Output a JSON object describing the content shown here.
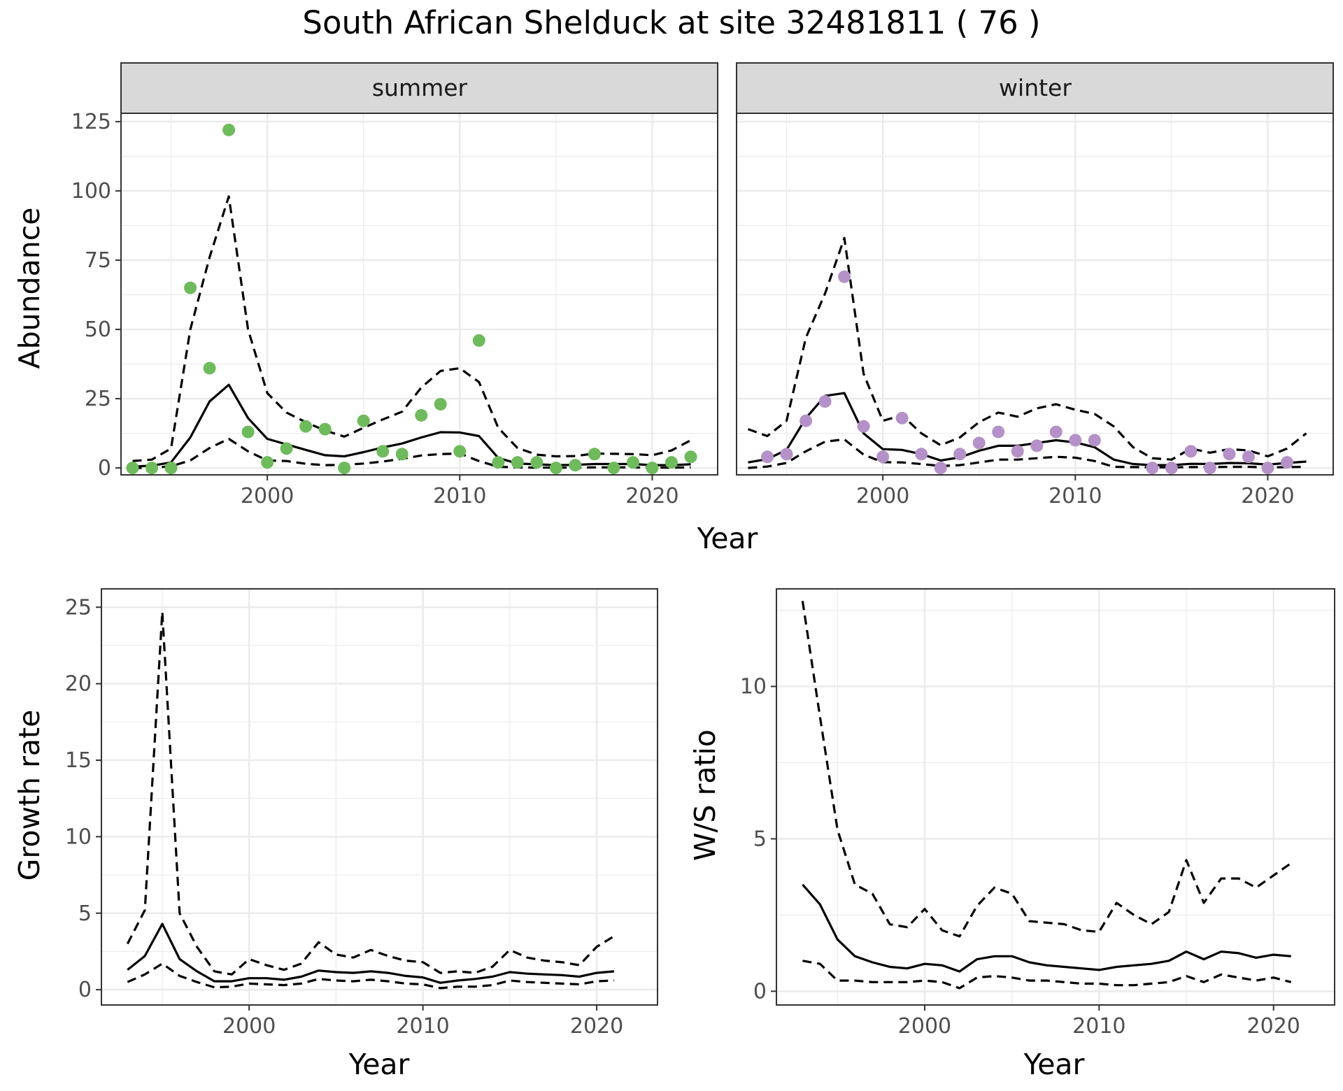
{
  "figure": {
    "title": "South African Shelduck at site 32481811 ( 76 )",
    "colors": {
      "summer_points": "#6dbb5a",
      "winter_points": "#b491c8",
      "line": "#000000",
      "grid": "#ebebeb",
      "strip_bg": "#d9d9d9"
    }
  },
  "chart_data": [
    {
      "id": "summer",
      "type": "scatter+line",
      "panel_label": "summer",
      "xlabel": "Year",
      "ylabel": "Abundance",
      "xlim": [
        1992.4,
        2023.4
      ],
      "ylim": [
        -2.5,
        128
      ],
      "xticks": [
        2000,
        2010,
        2020
      ],
      "yticks": [
        0,
        25,
        50,
        75,
        100,
        125
      ],
      "points": {
        "x": [
          1993,
          1994,
          1995,
          1996,
          1997,
          1998,
          1999,
          2000,
          2001,
          2002,
          2003,
          2004,
          2005,
          2006,
          2007,
          2008,
          2009,
          2010,
          2011,
          2012,
          2013,
          2014,
          2015,
          2016,
          2017,
          2018,
          2019,
          2020,
          2021,
          2022
        ],
        "y": [
          0,
          0,
          0,
          65,
          36,
          122,
          13,
          2,
          7,
          15,
          14,
          0,
          17,
          6,
          5,
          19,
          23,
          6,
          46,
          2,
          2,
          2,
          0,
          1,
          5,
          0,
          2,
          0,
          2,
          4
        ]
      },
      "series": [
        {
          "name": "estimate",
          "style": "solid",
          "x": [
            1993,
            1994,
            1995,
            1996,
            1997,
            1998,
            1999,
            2000,
            2001,
            2002,
            2003,
            2004,
            2005,
            2006,
            2007,
            2008,
            2009,
            2010,
            2011,
            2012,
            2013,
            2014,
            2015,
            2016,
            2017,
            2018,
            2019,
            2020,
            2021,
            2022
          ],
          "y": [
            0.5,
            0.8,
            2,
            11,
            24,
            30,
            18,
            10.5,
            8.5,
            6.5,
            4.6,
            4.2,
            5.7,
            7.4,
            8.8,
            11,
            12.9,
            12.8,
            11.5,
            3.6,
            1.6,
            1.3,
            1,
            1.1,
            1.4,
            1.4,
            1.4,
            1,
            1,
            1.3
          ]
        },
        {
          "name": "upper",
          "style": "dashed",
          "x": [
            1993,
            1994,
            1995,
            1996,
            1997,
            1998,
            1999,
            2000,
            2001,
            2002,
            2003,
            2004,
            2005,
            2006,
            2007,
            2008,
            2009,
            2010,
            2011,
            2012,
            2013,
            2014,
            2015,
            2016,
            2017,
            2018,
            2019,
            2020,
            2021,
            2022
          ],
          "y": [
            2.5,
            3,
            7,
            50,
            76,
            98,
            50,
            27,
            20,
            16.5,
            13.5,
            11.3,
            14.5,
            17.5,
            20.3,
            29,
            35,
            36,
            31,
            14.5,
            7.2,
            4.8,
            4.2,
            4.3,
            5.2,
            5.1,
            5,
            4.6,
            6.3,
            10
          ]
        },
        {
          "name": "lower",
          "style": "dashed",
          "x": [
            1993,
            1994,
            1995,
            1996,
            1997,
            1998,
            1999,
            2000,
            2001,
            2002,
            2003,
            2004,
            2005,
            2006,
            2007,
            2008,
            2009,
            2010,
            2011,
            2012,
            2013,
            2014,
            2015,
            2016,
            2017,
            2018,
            2019,
            2020,
            2021,
            2022
          ],
          "y": [
            0,
            0,
            0.6,
            2.7,
            7.2,
            10.5,
            6,
            2.7,
            2.5,
            1.5,
            1,
            1.1,
            1.6,
            2.3,
            3.3,
            4.5,
            5,
            5.2,
            2.5,
            0.4,
            0.2,
            0.1,
            0.1,
            0.1,
            0.2,
            0.2,
            0.2,
            0.1,
            0.1,
            0.2
          ]
        }
      ]
    },
    {
      "id": "winter",
      "type": "scatter+line",
      "panel_label": "winter",
      "xlabel": "Year",
      "ylabel": "",
      "xlim": [
        1992.4,
        2023.4
      ],
      "ylim": [
        -2.5,
        128
      ],
      "xticks": [
        2000,
        2010,
        2020
      ],
      "yticks": [
        0,
        25,
        50,
        75,
        100,
        125
      ],
      "points": {
        "x": [
          1994,
          1995,
          1996,
          1997,
          1998,
          1999,
          2000,
          2001,
          2002,
          2003,
          2004,
          2005,
          2006,
          2007,
          2008,
          2009,
          2010,
          2011,
          2014,
          2015,
          2016,
          2017,
          2018,
          2019,
          2020,
          2021
        ],
        "y": [
          4,
          5,
          17,
          24,
          69,
          15,
          4,
          18,
          5,
          0,
          5,
          9,
          13,
          6,
          8,
          13,
          10,
          10,
          0,
          0,
          6,
          0,
          5,
          4,
          0,
          2
        ]
      },
      "series": [
        {
          "name": "estimate",
          "style": "solid",
          "x": [
            1993,
            1994,
            1995,
            1996,
            1997,
            1998,
            1999,
            2000,
            2001,
            2002,
            2003,
            2004,
            2005,
            2006,
            2007,
            2008,
            2009,
            2010,
            2011,
            2012,
            2013,
            2014,
            2015,
            2016,
            2017,
            2018,
            2019,
            2020,
            2021,
            2022
          ],
          "y": [
            2,
            3.2,
            6.5,
            18,
            26,
            27,
            12.5,
            6.8,
            6.5,
            5,
            2.7,
            3.8,
            6.2,
            8,
            8,
            9,
            10,
            9.2,
            7.5,
            3,
            1.4,
            1,
            1,
            1.5,
            1.4,
            1.8,
            1.7,
            1.2,
            1.8,
            2.3
          ]
        },
        {
          "name": "upper",
          "style": "dashed",
          "x": [
            1993,
            1994,
            1995,
            1996,
            1997,
            1998,
            1999,
            2000,
            2001,
            2002,
            2003,
            2004,
            2005,
            2006,
            2007,
            2008,
            2009,
            2010,
            2011,
            2012,
            2013,
            2014,
            2015,
            2016,
            2017,
            2018,
            2019,
            2020,
            2021,
            2022
          ],
          "y": [
            14,
            11.5,
            17,
            47,
            63,
            83,
            34,
            17,
            19,
            12.5,
            8.2,
            11,
            16.5,
            20,
            18.5,
            21.5,
            23,
            21,
            19.5,
            15,
            7.5,
            3.5,
            3,
            7,
            5.5,
            6.8,
            6.3,
            4.2,
            7,
            12.5
          ]
        },
        {
          "name": "lower",
          "style": "dashed",
          "x": [
            1993,
            1994,
            1995,
            1996,
            1997,
            1998,
            1999,
            2000,
            2001,
            2002,
            2003,
            2004,
            2005,
            2006,
            2007,
            2008,
            2009,
            2010,
            2011,
            2012,
            2013,
            2014,
            2015,
            2016,
            2017,
            2018,
            2019,
            2020,
            2021,
            2022
          ],
          "y": [
            0,
            0.5,
            1.8,
            6,
            9.5,
            10.3,
            4.8,
            2.1,
            2,
            1.4,
            0.7,
            1,
            2,
            3,
            3,
            3.5,
            4,
            3.7,
            2.5,
            0.4,
            0.3,
            0.2,
            0.2,
            0.3,
            0.3,
            0.4,
            0.4,
            0.2,
            0.3,
            0.4
          ]
        }
      ]
    },
    {
      "id": "growth",
      "type": "line",
      "panel_label": "",
      "xlabel": "Year",
      "ylabel": "Growth rate",
      "xlim": [
        1991.5,
        2023.5
      ],
      "ylim": [
        -1.0,
        26.2
      ],
      "xticks": [
        2000,
        2010,
        2020
      ],
      "yticks": [
        0,
        5,
        10,
        15,
        20,
        25
      ],
      "series": [
        {
          "name": "estimate",
          "style": "solid",
          "x": [
            1993,
            1994,
            1995,
            1996,
            1997,
            1998,
            1999,
            2000,
            2001,
            2002,
            2003,
            2004,
            2005,
            2006,
            2007,
            2008,
            2009,
            2010,
            2011,
            2012,
            2013,
            2014,
            2015,
            2016,
            2017,
            2018,
            2019,
            2020,
            2021
          ],
          "y": [
            1.3,
            2.2,
            4.3,
            2,
            1.2,
            0.55,
            0.55,
            0.75,
            0.75,
            0.65,
            0.85,
            1.25,
            1.15,
            1.1,
            1.2,
            1.1,
            0.9,
            0.8,
            0.45,
            0.6,
            0.7,
            0.85,
            1.15,
            1.05,
            1,
            0.95,
            0.85,
            1.1,
            1.2
          ]
        },
        {
          "name": "upper",
          "style": "dashed",
          "x": [
            1993,
            1994,
            1995,
            1996,
            1997,
            1998,
            1999,
            2000,
            2001,
            2002,
            2003,
            2004,
            2005,
            2006,
            2007,
            2008,
            2009,
            2010,
            2011,
            2012,
            2013,
            2014,
            2015,
            2016,
            2017,
            2018,
            2019,
            2020,
            2021
          ],
          "y": [
            3,
            5.2,
            24.7,
            5,
            2.8,
            1.2,
            1,
            2,
            1.6,
            1.3,
            1.7,
            3.1,
            2.3,
            2.1,
            2.6,
            2.2,
            1.9,
            1.8,
            1.1,
            1.2,
            1.1,
            1.5,
            2.6,
            2.1,
            1.9,
            1.8,
            1.6,
            2.8,
            3.5
          ]
        },
        {
          "name": "lower",
          "style": "dashed",
          "x": [
            1993,
            1994,
            1995,
            1996,
            1997,
            1998,
            1999,
            2000,
            2001,
            2002,
            2003,
            2004,
            2005,
            2006,
            2007,
            2008,
            2009,
            2010,
            2011,
            2012,
            2013,
            2014,
            2015,
            2016,
            2017,
            2018,
            2019,
            2020,
            2021
          ],
          "y": [
            0.5,
            1,
            1.7,
            0.9,
            0.5,
            0.15,
            0.2,
            0.4,
            0.35,
            0.3,
            0.4,
            0.7,
            0.6,
            0.55,
            0.65,
            0.55,
            0.4,
            0.35,
            0.1,
            0.2,
            0.2,
            0.3,
            0.6,
            0.5,
            0.45,
            0.4,
            0.35,
            0.55,
            0.6
          ]
        }
      ]
    },
    {
      "id": "ratio",
      "type": "line",
      "panel_label": "",
      "xlabel": "Year",
      "ylabel": "W/S ratio",
      "xlim": [
        1991.5,
        2023.5
      ],
      "ylim": [
        -0.45,
        13.2
      ],
      "xticks": [
        2000,
        2010,
        2020
      ],
      "yticks": [
        0,
        5,
        10
      ],
      "series": [
        {
          "name": "estimate",
          "style": "solid",
          "x": [
            1993,
            1994,
            1995,
            1996,
            1997,
            1998,
            1999,
            2000,
            2001,
            2002,
            2003,
            2004,
            2005,
            2006,
            2007,
            2008,
            2009,
            2010,
            2011,
            2012,
            2013,
            2014,
            2015,
            2016,
            2017,
            2018,
            2019,
            2020,
            2021
          ],
          "y": [
            3.5,
            2.85,
            1.7,
            1.15,
            0.95,
            0.8,
            0.75,
            0.9,
            0.85,
            0.65,
            1.05,
            1.15,
            1.15,
            0.95,
            0.85,
            0.8,
            0.75,
            0.7,
            0.8,
            0.85,
            0.9,
            1,
            1.3,
            1.05,
            1.3,
            1.25,
            1.1,
            1.2,
            1.15
          ]
        },
        {
          "name": "upper",
          "style": "dashed",
          "x": [
            1993,
            1994,
            1995,
            1996,
            1997,
            1998,
            1999,
            2000,
            2001,
            2002,
            2003,
            2004,
            2005,
            2006,
            2007,
            2008,
            2009,
            2010,
            2011,
            2012,
            2013,
            2014,
            2015,
            2016,
            2017,
            2018,
            2019,
            2020,
            2021
          ],
          "y": [
            12.8,
            9,
            5.3,
            3.5,
            3.2,
            2.2,
            2.1,
            2.7,
            2,
            1.8,
            2.8,
            3.4,
            3.2,
            2.3,
            2.25,
            2.2,
            2,
            1.95,
            2.9,
            2.5,
            2.2,
            2.6,
            4.3,
            2.9,
            3.7,
            3.7,
            3.4,
            3.8,
            4.2
          ]
        },
        {
          "name": "lower",
          "style": "dashed",
          "x": [
            1993,
            1994,
            1995,
            1996,
            1997,
            1998,
            1999,
            2000,
            2001,
            2002,
            2003,
            2004,
            2005,
            2006,
            2007,
            2008,
            2009,
            2010,
            2011,
            2012,
            2013,
            2014,
            2015,
            2016,
            2017,
            2018,
            2019,
            2020,
            2021
          ],
          "y": [
            1,
            0.9,
            0.35,
            0.35,
            0.3,
            0.3,
            0.3,
            0.35,
            0.3,
            0.1,
            0.45,
            0.5,
            0.45,
            0.35,
            0.35,
            0.3,
            0.25,
            0.25,
            0.2,
            0.2,
            0.25,
            0.3,
            0.5,
            0.3,
            0.55,
            0.45,
            0.35,
            0.45,
            0.3
          ]
        }
      ]
    }
  ]
}
